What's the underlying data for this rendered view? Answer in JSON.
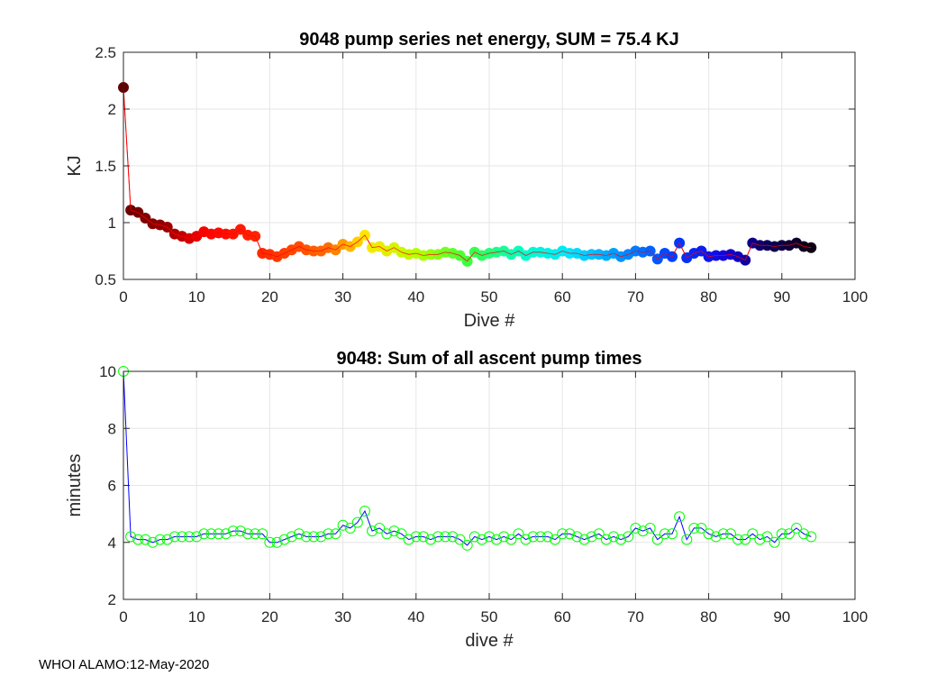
{
  "footer": "WHOI ALAMO:12-May-2020",
  "chart_data": [
    {
      "type": "line",
      "title": "9048 pump series net energy, SUM =  75.4 KJ",
      "xlabel": "Dive #",
      "ylabel": "KJ",
      "xlim": [
        0,
        100
      ],
      "ylim": [
        0.5,
        2.5
      ],
      "xticks": [
        "0",
        "10",
        "20",
        "30",
        "40",
        "50",
        "60",
        "70",
        "80",
        "90",
        "100"
      ],
      "yticks": [
        "0.5",
        "1",
        "1.5",
        "2",
        "2.5"
      ],
      "grid": true,
      "line_color": "#ff0000",
      "marker": "filled circle colored by dive (dark red - red - orange - yellow - green - cyan - blue - black)",
      "x": [
        0,
        1,
        2,
        3,
        4,
        5,
        6,
        7,
        8,
        9,
        10,
        11,
        12,
        13,
        14,
        15,
        16,
        17,
        18,
        19,
        20,
        21,
        22,
        23,
        24,
        25,
        26,
        27,
        28,
        29,
        30,
        31,
        32,
        33,
        34,
        35,
        36,
        37,
        38,
        39,
        40,
        41,
        42,
        43,
        44,
        45,
        46,
        47,
        48,
        49,
        50,
        51,
        52,
        53,
        54,
        55,
        56,
        57,
        58,
        59,
        60,
        61,
        62,
        63,
        64,
        65,
        66,
        67,
        68,
        69,
        70,
        71,
        72,
        73,
        74,
        75,
        76,
        77,
        78,
        79,
        80,
        81,
        82,
        83,
        84,
        85,
        86,
        87,
        88,
        89,
        90,
        91,
        92,
        93,
        94
      ],
      "y": [
        2.19,
        1.11,
        1.09,
        1.04,
        0.99,
        0.98,
        0.96,
        0.9,
        0.88,
        0.86,
        0.88,
        0.92,
        0.9,
        0.91,
        0.9,
        0.9,
        0.94,
        0.89,
        0.88,
        0.73,
        0.72,
        0.7,
        0.73,
        0.76,
        0.79,
        0.76,
        0.75,
        0.75,
        0.78,
        0.76,
        0.81,
        0.79,
        0.83,
        0.89,
        0.78,
        0.79,
        0.75,
        0.78,
        0.74,
        0.72,
        0.73,
        0.71,
        0.72,
        0.72,
        0.74,
        0.73,
        0.71,
        0.66,
        0.74,
        0.71,
        0.73,
        0.74,
        0.75,
        0.72,
        0.75,
        0.71,
        0.74,
        0.74,
        0.73,
        0.72,
        0.75,
        0.73,
        0.73,
        0.71,
        0.72,
        0.72,
        0.71,
        0.73,
        0.7,
        0.72,
        0.75,
        0.74,
        0.75,
        0.68,
        0.73,
        0.7,
        0.82,
        0.69,
        0.73,
        0.75,
        0.7,
        0.71,
        0.71,
        0.72,
        0.7,
        0.67,
        0.82,
        0.8,
        0.8,
        0.79,
        0.8,
        0.8,
        0.82,
        0.79,
        0.78
      ]
    },
    {
      "type": "line",
      "title": "9048: Sum of all ascent pump times",
      "xlabel": "dive #",
      "ylabel": "minutes",
      "xlim": [
        0,
        100
      ],
      "ylim": [
        2,
        10
      ],
      "xticks": [
        "0",
        "10",
        "20",
        "30",
        "40",
        "50",
        "60",
        "70",
        "80",
        "90",
        "100"
      ],
      "yticks": [
        "2",
        "4",
        "6",
        "8",
        "10"
      ],
      "grid": true,
      "line_color": "#0000ff",
      "marker_color": "#00ff00",
      "marker": "open circle",
      "x": [
        0,
        1,
        2,
        3,
        4,
        5,
        6,
        7,
        8,
        9,
        10,
        11,
        12,
        13,
        14,
        15,
        16,
        17,
        18,
        19,
        20,
        21,
        22,
        23,
        24,
        25,
        26,
        27,
        28,
        29,
        30,
        31,
        32,
        33,
        34,
        35,
        36,
        37,
        38,
        39,
        40,
        41,
        42,
        43,
        44,
        45,
        46,
        47,
        48,
        49,
        50,
        51,
        52,
        53,
        54,
        55,
        56,
        57,
        58,
        59,
        60,
        61,
        62,
        63,
        64,
        65,
        66,
        67,
        68,
        69,
        70,
        71,
        72,
        73,
        74,
        75,
        76,
        77,
        78,
        79,
        80,
        81,
        82,
        83,
        84,
        85,
        86,
        87,
        88,
        89,
        90,
        91,
        92,
        93,
        94
      ],
      "y": [
        10,
        4.2,
        4.1,
        4.1,
        4.0,
        4.1,
        4.1,
        4.2,
        4.2,
        4.2,
        4.2,
        4.3,
        4.3,
        4.3,
        4.3,
        4.4,
        4.4,
        4.3,
        4.3,
        4.3,
        4.0,
        4.0,
        4.1,
        4.2,
        4.3,
        4.2,
        4.2,
        4.2,
        4.3,
        4.3,
        4.6,
        4.5,
        4.7,
        5.1,
        4.4,
        4.5,
        4.3,
        4.4,
        4.3,
        4.1,
        4.2,
        4.2,
        4.1,
        4.2,
        4.2,
        4.2,
        4.1,
        3.9,
        4.2,
        4.1,
        4.2,
        4.1,
        4.2,
        4.1,
        4.3,
        4.1,
        4.2,
        4.2,
        4.2,
        4.1,
        4.3,
        4.3,
        4.2,
        4.1,
        4.2,
        4.3,
        4.1,
        4.2,
        4.1,
        4.2,
        4.5,
        4.4,
        4.5,
        4.1,
        4.3,
        4.3,
        4.9,
        4.1,
        4.5,
        4.5,
        4.3,
        4.2,
        4.3,
        4.3,
        4.1,
        4.1,
        4.3,
        4.1,
        4.2,
        4.0,
        4.3,
        4.3,
        4.5,
        4.3,
        4.2
      ]
    }
  ]
}
